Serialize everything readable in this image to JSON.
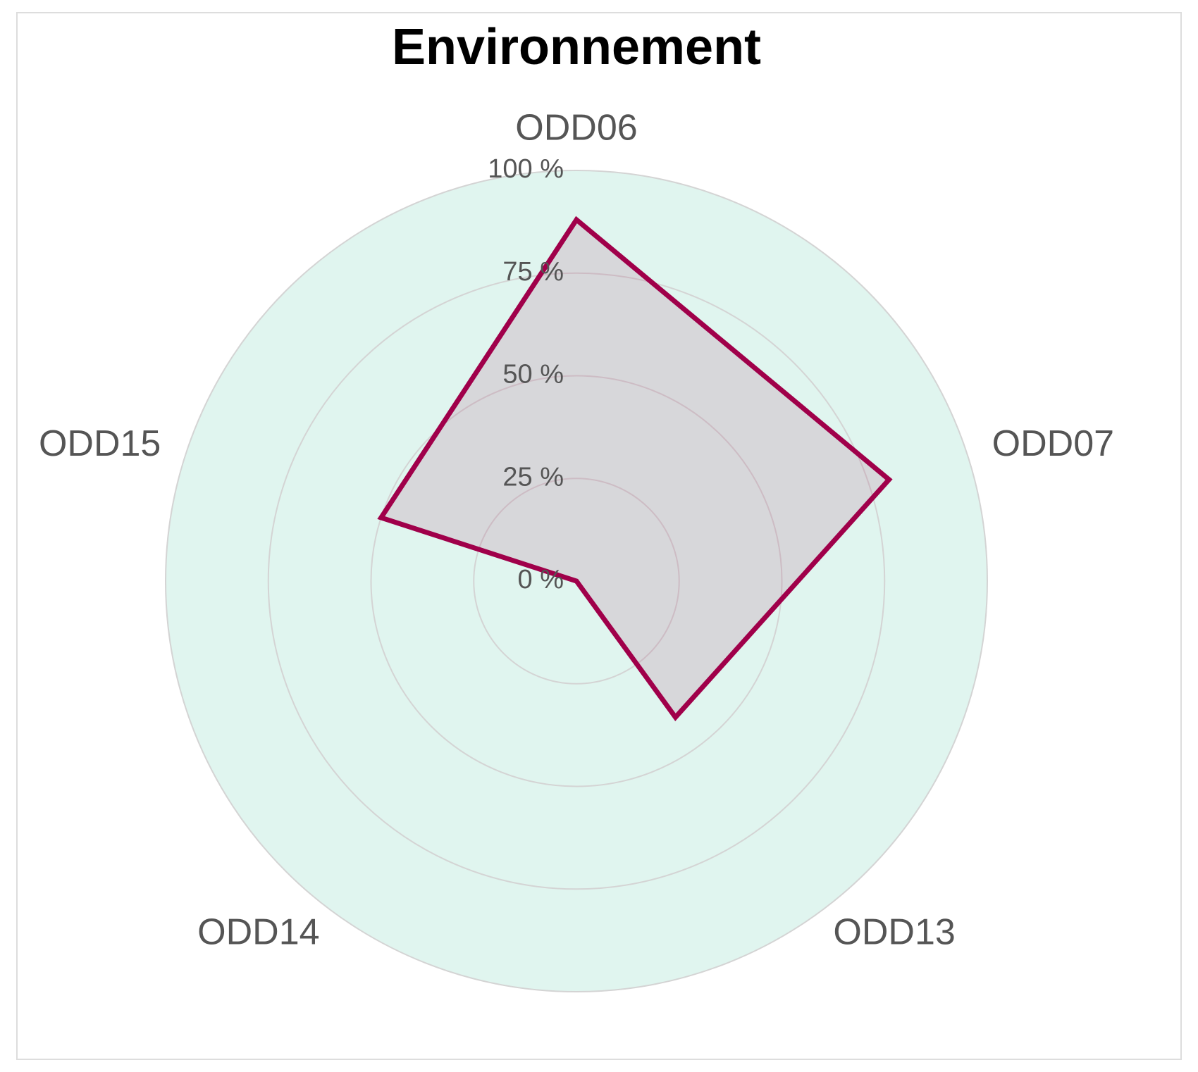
{
  "chart_data": {
    "type": "radar",
    "title": "Environnement",
    "categories": [
      "ODD06",
      "ODD07",
      "ODD13",
      "ODD14",
      "ODD15"
    ],
    "series": [
      {
        "name": null,
        "color": "#a0004a",
        "values": [
          88,
          80,
          41,
          0,
          50
        ]
      }
    ],
    "ylim": [
      0,
      100
    ],
    "yticks": [
      {
        "value": 0,
        "label": "0 %"
      },
      {
        "value": 25,
        "label": "25 %"
      },
      {
        "value": 50,
        "label": "50 %"
      },
      {
        "value": 75,
        "label": "75 %"
      },
      {
        "value": 100,
        "label": "100 %"
      }
    ],
    "grid": true
  }
}
